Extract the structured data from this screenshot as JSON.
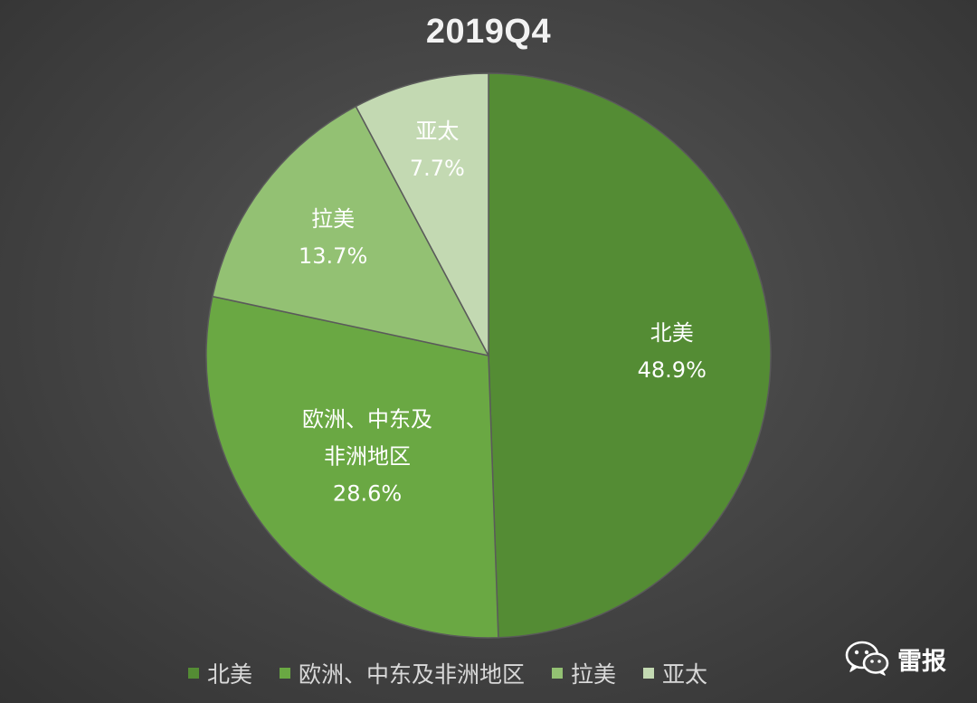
{
  "chart_data": {
    "type": "pie",
    "title": "2019Q4",
    "slices": [
      {
        "label": "北美",
        "label_lines": [
          "北美"
        ],
        "value": 48.9,
        "value_label": "48.9%",
        "color": "#548c34"
      },
      {
        "label": "欧洲、中东及非洲地区",
        "label_lines": [
          "欧洲、中东及",
          "非洲地区"
        ],
        "value": 28.6,
        "value_label": "28.6%",
        "color": "#6aa843"
      },
      {
        "label": "拉美",
        "label_lines": [
          "拉美"
        ],
        "value": 13.7,
        "value_label": "13.7%",
        "color": "#93c173"
      },
      {
        "label": "亚太",
        "label_lines": [
          "亚太"
        ],
        "value": 7.7,
        "value_label": "7.7%",
        "color": "#c3d9b2"
      }
    ],
    "start_angle": "12 o'clock",
    "direction": "clockwise",
    "legend_position": "bottom"
  },
  "legend": {
    "items": [
      "北美",
      "欧洲、中东及非洲地区",
      "拉美",
      "亚太"
    ]
  },
  "watermark": {
    "text": "雷报",
    "icon": "wechat-icon"
  },
  "colors": {
    "background": "#474747",
    "slice_border": "#5a5a5a",
    "title": "#f2f2f2",
    "legend_text": "#d9d9d9"
  }
}
